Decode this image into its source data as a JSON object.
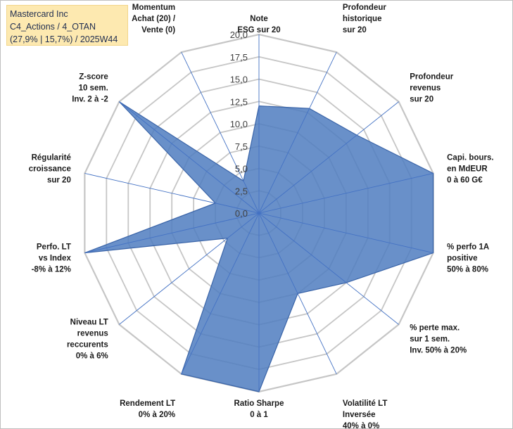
{
  "title_box": {
    "line1": "Mastercard Inc",
    "line2": "C4_Actions / 4_OTAN",
    "line3": "(27,9% | 15,7%) / 2025W44"
  },
  "chart_data": {
    "type": "radar",
    "title": "Mastercard Inc",
    "range": [
      0,
      20
    ],
    "tick_step": 2.5,
    "tick_labels": [
      "0,0",
      "2,5",
      "5,0",
      "7,5",
      "10,0",
      "12,5",
      "15,0",
      "17,5",
      "20,0"
    ],
    "axes": [
      {
        "label": [
          "Note",
          "ESG sur 20"
        ]
      },
      {
        "label": [
          "Profondeur",
          "historique",
          "sur 20"
        ]
      },
      {
        "label": [
          "Profondeur",
          "revenus",
          "sur 20"
        ]
      },
      {
        "label": [
          "Capi. bours.",
          "en MdEUR",
          "0 à 60 G€"
        ]
      },
      {
        "label": [
          "% perfo 1A",
          "positive",
          "50% à 80%"
        ]
      },
      {
        "label": [
          "% perte max.",
          "sur 1 sem.",
          "Inv. 50% à 20%"
        ]
      },
      {
        "label": [
          "Volatilité LT",
          "Inversée",
          "40% à 0%"
        ]
      },
      {
        "label": [
          "Ratio Sharpe",
          "0 à 1"
        ]
      },
      {
        "label": [
          "Rendement LT",
          "0% à 20%"
        ]
      },
      {
        "label": [
          "Niveau LT",
          "revenus",
          "reccurents",
          "0% à 6%"
        ]
      },
      {
        "label": [
          "Perfo. LT",
          "vs Index",
          "-8% à 12%"
        ]
      },
      {
        "label": [
          "Régularité",
          "croissance",
          "sur 20"
        ]
      },
      {
        "label": [
          "Z-score",
          "10 sem.",
          "Inv. 2 à -2"
        ]
      },
      {
        "label": [
          "Momentum",
          "Achat (20) /",
          "Vente (0)"
        ]
      }
    ],
    "series": [
      {
        "name": "Mastercard Inc",
        "values": [
          12,
          13,
          14,
          20,
          20,
          12.5,
          10,
          20,
          20,
          4.5,
          20,
          5,
          20,
          4
        ],
        "color": "#4f7cc0"
      }
    ],
    "colors": {
      "fill": "#4f7cc0",
      "stroke": "#3a64a8",
      "grid": "#c6c6c6",
      "spoke": "#4472c4"
    }
  }
}
